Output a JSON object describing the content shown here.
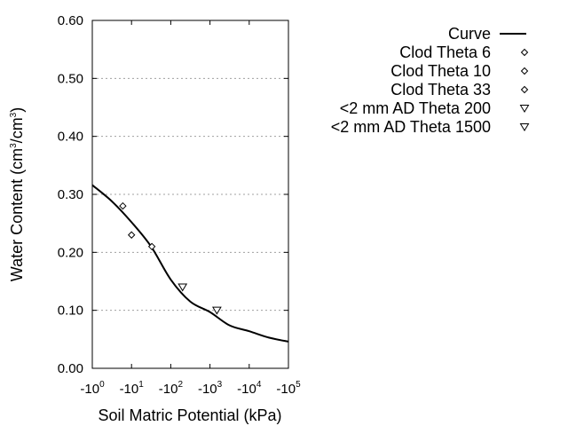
{
  "chart_data": {
    "type": "scatter",
    "title": "",
    "xlabel": "Soil Matric Potential (kPa)",
    "ylabel": "Water Content (cm3/cm3)",
    "ylabel_parts": {
      "base": "Water Content (cm",
      "sup1": "3",
      "mid": "/cm",
      "sup2": "3",
      "end": ")"
    },
    "x_scale": "log (negative, magnitude shown)",
    "xlim": [
      1,
      100000
    ],
    "ylim": [
      0,
      0.6
    ],
    "x_ticks": [
      {
        "value": 1,
        "base": "-10",
        "exp": "0"
      },
      {
        "value": 10,
        "base": "-10",
        "exp": "1"
      },
      {
        "value": 100,
        "base": "-10",
        "exp": "2"
      },
      {
        "value": 1000,
        "base": "-10",
        "exp": "3"
      },
      {
        "value": 10000,
        "base": "-10",
        "exp": "4"
      },
      {
        "value": 100000,
        "base": "-10",
        "exp": "5"
      }
    ],
    "y_ticks": [
      "0.00",
      "0.10",
      "0.20",
      "0.30",
      "0.40",
      "0.50",
      "0.60"
    ],
    "y_tick_values": [
      0,
      0.1,
      0.2,
      0.3,
      0.4,
      0.5,
      0.6
    ],
    "grid": "horizontal dotted",
    "legend_placement": "top-right outside plot",
    "series": [
      {
        "name": "Curve",
        "kind": "line",
        "color": "#000000",
        "x": [
          1,
          3.16,
          10,
          31.6,
          100,
          316,
          1000,
          3162,
          10000,
          31623,
          100000
        ],
        "y": [
          0.316,
          0.288,
          0.252,
          0.21,
          0.153,
          0.115,
          0.097,
          0.074,
          0.064,
          0.053,
          0.046
        ]
      },
      {
        "name": "Clod Theta 6",
        "marker": "diamond",
        "x": [
          6
        ],
        "y": [
          0.28
        ]
      },
      {
        "name": "Clod Theta 10",
        "marker": "diamond",
        "x": [
          10
        ],
        "y": [
          0.23
        ]
      },
      {
        "name": "Clod Theta 33",
        "marker": "diamond",
        "x": [
          33
        ],
        "y": [
          0.21
        ]
      },
      {
        "name": "<2 mm AD Theta 200",
        "marker": "triangle-down",
        "x": [
          200
        ],
        "y": [
          0.14
        ]
      },
      {
        "name": "<2 mm AD Theta 1500",
        "marker": "triangle-down",
        "x": [
          1500
        ],
        "y": [
          0.1
        ]
      }
    ]
  }
}
